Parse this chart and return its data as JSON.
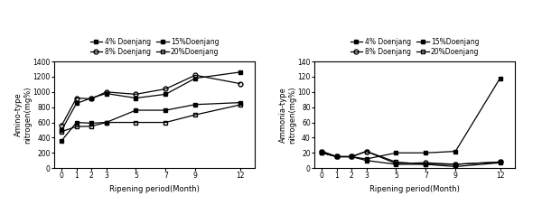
{
  "x": [
    0,
    1,
    2,
    3,
    5,
    7,
    9,
    12
  ],
  "amino": {
    "4pct": [
      360,
      600,
      590,
      600,
      760,
      760,
      835,
      860
    ],
    "8pct": [
      560,
      920,
      910,
      1000,
      970,
      1040,
      1220,
      1110
    ],
    "15pct": [
      500,
      850,
      920,
      980,
      920,
      970,
      1180,
      1260
    ],
    "20pct": [
      480,
      545,
      550,
      600,
      600,
      600,
      700,
      830
    ]
  },
  "ammonia": {
    "4pct": [
      22,
      15,
      15,
      12,
      20,
      20,
      22,
      118
    ],
    "8pct": [
      22,
      15,
      15,
      22,
      6,
      7,
      5,
      8
    ],
    "15pct": [
      20,
      15,
      15,
      10,
      5,
      5,
      2,
      7
    ],
    "20pct": [
      20,
      15,
      15,
      22,
      8,
      5,
      5,
      8
    ]
  },
  "amino_ylim": [
    0,
    1400
  ],
  "amino_yticks": [
    0,
    200,
    400,
    600,
    800,
    1000,
    1200,
    1400
  ],
  "ammonia_ylim": [
    0,
    140
  ],
  "ammonia_yticks": [
    0,
    20,
    40,
    60,
    80,
    100,
    120,
    140
  ],
  "xlabel": "Ripening period(Month)",
  "amino_ylabel": "Amino-type\nnitrogen(mg%)",
  "ammonia_ylabel": "Ammonia-type\nnitrogen(mg%)",
  "legend_labels": [
    "4% Doenjang",
    "8% Doenjang",
    "15%Doenjang",
    "20%Doenjang"
  ],
  "bg_color": "#ffffff"
}
